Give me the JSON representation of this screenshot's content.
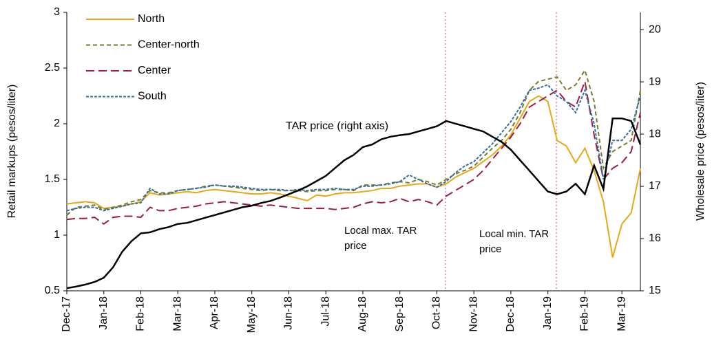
{
  "chart_data": {
    "type": "line",
    "ylabel": "Retail markups (pesos/liter)",
    "y2label": "Wholesale price (pesos/liter)",
    "annotations": [
      "Local max. TAR price",
      "Local min. TAR price"
    ],
    "categories": [
      "Dec-17",
      null,
      null,
      null,
      "Jan-18",
      null,
      null,
      null,
      "Feb-18",
      null,
      null,
      null,
      "Mar-18",
      null,
      null,
      null,
      "Apr-18",
      null,
      null,
      null,
      "May-18",
      null,
      null,
      null,
      "Jun-18",
      null,
      null,
      null,
      "Jul-18",
      null,
      null,
      null,
      "Aug-18",
      null,
      null,
      null,
      "Sep-18",
      null,
      null,
      null,
      "Oct-18",
      null,
      null,
      null,
      "Nov-18",
      null,
      null,
      null,
      "Dec-18",
      null,
      null,
      null,
      "Jan-19",
      null,
      null,
      null,
      "Feb-19",
      null,
      null,
      null,
      "Mar-19",
      null,
      null
    ],
    "ylim": [
      0.5,
      3
    ],
    "yticks": [
      0.5,
      1,
      1.5,
      2,
      2.5,
      3
    ],
    "y2lim": [
      15,
      20.33
    ],
    "y2ticks": [
      15,
      16,
      17,
      18,
      19,
      20
    ],
    "series": [
      {
        "name": "North",
        "color": "#e6a817",
        "style": "solid",
        "legend": true,
        "values": [
          1.28,
          1.29,
          1.3,
          1.29,
          1.24,
          1.25,
          1.26,
          1.28,
          1.3,
          1.38,
          1.36,
          1.37,
          1.38,
          1.39,
          1.38,
          1.4,
          1.41,
          1.4,
          1.39,
          1.38,
          1.37,
          1.37,
          1.38,
          1.37,
          1.35,
          1.33,
          1.31,
          1.36,
          1.35,
          1.37,
          1.38,
          1.38,
          1.39,
          1.4,
          1.42,
          1.42,
          1.44,
          1.45,
          1.46,
          1.46,
          1.43,
          1.46,
          1.52,
          1.56,
          1.6,
          1.66,
          1.72,
          1.8,
          1.9,
          2.05,
          2.2,
          2.25,
          2.2,
          1.85,
          1.8,
          1.65,
          1.78,
          1.58,
          1.3,
          0.8,
          1.1,
          1.2,
          1.6
        ]
      },
      {
        "name": "Center-north",
        "color": "#7a7a2a",
        "style": "dashed",
        "legend": true,
        "values": [
          1.18,
          1.25,
          1.26,
          1.27,
          1.23,
          1.25,
          1.27,
          1.3,
          1.32,
          1.4,
          1.38,
          1.38,
          1.4,
          1.41,
          1.42,
          1.44,
          1.45,
          1.44,
          1.43,
          1.42,
          1.41,
          1.4,
          1.41,
          1.4,
          1.4,
          1.4,
          1.39,
          1.4,
          1.4,
          1.41,
          1.41,
          1.4,
          1.45,
          1.45,
          1.45,
          1.47,
          1.48,
          1.47,
          1.5,
          1.48,
          1.45,
          1.5,
          1.55,
          1.58,
          1.62,
          1.7,
          1.78,
          1.85,
          1.95,
          2.1,
          2.3,
          2.38,
          2.4,
          2.42,
          2.3,
          2.35,
          2.48,
          2.2,
          1.6,
          1.75,
          1.8,
          1.85,
          2.3
        ]
      },
      {
        "name": "Center",
        "color": "#9b1b42",
        "style": "long-dashed",
        "legend": true,
        "values": [
          1.14,
          1.15,
          1.15,
          1.16,
          1.1,
          1.16,
          1.17,
          1.17,
          1.16,
          1.25,
          1.22,
          1.22,
          1.24,
          1.25,
          1.26,
          1.28,
          1.29,
          1.3,
          1.29,
          1.28,
          1.27,
          1.26,
          1.27,
          1.26,
          1.25,
          1.24,
          1.24,
          1.24,
          1.24,
          1.23,
          1.24,
          1.25,
          1.28,
          1.3,
          1.29,
          1.3,
          1.33,
          1.3,
          1.32,
          1.3,
          1.27,
          1.35,
          1.4,
          1.45,
          1.5,
          1.58,
          1.68,
          1.78,
          1.88,
          2.0,
          2.15,
          2.2,
          2.25,
          2.3,
          2.2,
          2.15,
          2.38,
          1.9,
          1.5,
          1.6,
          1.65,
          1.75,
          2.1
        ]
      },
      {
        "name": "South",
        "color": "#2e6f9e",
        "style": "dotted",
        "legend": true,
        "values": [
          1.22,
          1.24,
          1.25,
          1.25,
          1.22,
          1.24,
          1.26,
          1.28,
          1.29,
          1.42,
          1.37,
          1.37,
          1.4,
          1.41,
          1.42,
          1.43,
          1.45,
          1.44,
          1.44,
          1.43,
          1.42,
          1.41,
          1.41,
          1.41,
          1.4,
          1.41,
          1.4,
          1.41,
          1.41,
          1.42,
          1.41,
          1.41,
          1.44,
          1.44,
          1.45,
          1.46,
          1.48,
          1.54,
          1.5,
          1.46,
          1.43,
          1.48,
          1.56,
          1.62,
          1.66,
          1.74,
          1.82,
          1.92,
          2.02,
          2.15,
          2.3,
          2.32,
          2.35,
          2.25,
          2.2,
          2.1,
          2.3,
          2.0,
          1.5,
          1.85,
          1.85,
          1.95,
          2.25
        ]
      },
      {
        "name": "TAR price (right axis)",
        "color": "#000000",
        "style": "solid",
        "legend": false,
        "axis": "y2",
        "values": [
          15.05,
          15.08,
          15.12,
          15.17,
          15.25,
          15.45,
          15.75,
          15.95,
          16.1,
          16.12,
          16.18,
          16.22,
          16.28,
          16.3,
          16.35,
          16.4,
          16.45,
          16.5,
          16.55,
          16.6,
          16.63,
          16.68,
          16.72,
          16.78,
          16.85,
          16.92,
          17.0,
          17.1,
          17.2,
          17.35,
          17.5,
          17.6,
          17.75,
          17.8,
          17.9,
          17.95,
          17.98,
          18.0,
          18.05,
          18.1,
          18.15,
          18.25,
          18.2,
          18.15,
          18.1,
          18.05,
          17.95,
          17.85,
          17.7,
          17.5,
          17.3,
          17.1,
          16.9,
          16.85,
          16.9,
          17.05,
          16.85,
          17.4,
          16.95,
          18.3,
          18.3,
          18.25,
          17.8
        ]
      }
    ]
  }
}
